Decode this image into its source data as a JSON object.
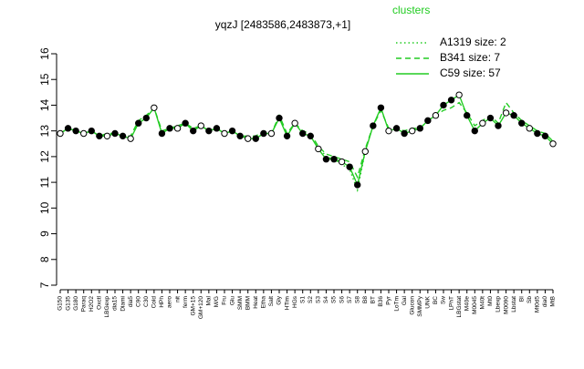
{
  "chart_data": {
    "type": "line",
    "title": "yqzJ [2483586,2483873,+1]",
    "legend_title": "clusters",
    "legend_position": "top-right",
    "categories": [
      "G150",
      "G135",
      "G180",
      "Paraq",
      "H2O2",
      "Oxctl",
      "LBGexp",
      "dia15",
      "Diami",
      "dia5",
      "C90",
      "C30",
      "Cold",
      "HPh",
      "aero",
      "nit",
      "ferm",
      "GM+15",
      "GM+120",
      "Mal",
      "M/G",
      "Fru",
      "Glu",
      "SMM",
      "BMM",
      "Heat",
      "Etha",
      "Salt",
      "Gly",
      "HTim",
      "HGs",
      "S1",
      "S2",
      "S3",
      "S4",
      "S5",
      "S6",
      "S7",
      "S8",
      "B8",
      "BT",
      "B36",
      "Pyr",
      "LoTm",
      "Gal",
      "Glucon",
      "SMMPy",
      "UNK",
      "BC",
      "Sw",
      "LPhT",
      "LBGstat",
      "M40e",
      "M0045",
      "M40t",
      "Mt0",
      "Lbexp",
      "M0090",
      "Lbstat",
      "BI",
      "Sb",
      "Mt0d5",
      "dia0",
      "MtB"
    ],
    "series": [
      {
        "name": "A1319 size: 2",
        "color": "#22cc22",
        "style": "dotted",
        "values": [
          null,
          null,
          null,
          null,
          null,
          null,
          null,
          null,
          null,
          null,
          null,
          null,
          null,
          null,
          null,
          null,
          null,
          null,
          null,
          null,
          null,
          null,
          null,
          null,
          null,
          null,
          null,
          null,
          null,
          null,
          null,
          null,
          null,
          12.4,
          12.0,
          11.9,
          11.7,
          11.5,
          10.7,
          12.2,
          null,
          null,
          null,
          null,
          null,
          null,
          null,
          null,
          null,
          null,
          null,
          null,
          null,
          null,
          null,
          null,
          null,
          null,
          null,
          null,
          null,
          null,
          null,
          null
        ]
      },
      {
        "name": "B341 size: 7",
        "color": "#22cc22",
        "style": "dashed",
        "values": [
          12.9,
          13.1,
          13.0,
          12.9,
          13.0,
          12.8,
          12.9,
          12.9,
          12.8,
          12.8,
          13.4,
          13.6,
          13.9,
          13.0,
          13.1,
          13.2,
          13.3,
          13.1,
          13.2,
          13.0,
          13.1,
          12.9,
          13.0,
          12.8,
          12.8,
          12.8,
          13.0,
          12.9,
          13.6,
          12.9,
          13.3,
          13.0,
          12.9,
          12.4,
          12.1,
          12.0,
          11.9,
          11.8,
          11.2,
          12.3,
          13.2,
          13.8,
          13.1,
          13.1,
          13.0,
          13.1,
          13.1,
          13.4,
          13.6,
          13.8,
          13.9,
          14.1,
          13.7,
          13.2,
          13.4,
          13.6,
          13.3,
          14.1,
          13.7,
          13.4,
          13.2,
          13.0,
          12.9,
          12.6
        ]
      },
      {
        "name": "C59 size: 57",
        "color": "#22cc22",
        "style": "solid",
        "values": [
          12.9,
          13.1,
          13.0,
          12.9,
          13.0,
          12.8,
          12.8,
          12.9,
          12.8,
          12.7,
          13.3,
          13.5,
          13.9,
          12.9,
          13.1,
          13.1,
          13.3,
          13.0,
          13.2,
          13.0,
          13.1,
          12.9,
          13.0,
          12.8,
          12.7,
          12.7,
          12.9,
          12.9,
          13.5,
          12.8,
          13.3,
          12.9,
          12.8,
          12.3,
          11.9,
          11.9,
          11.8,
          11.6,
          10.9,
          12.2,
          13.2,
          13.9,
          13.0,
          13.1,
          12.9,
          13.0,
          13.1,
          13.4,
          13.6,
          14.0,
          14.2,
          14.4,
          13.6,
          13.0,
          13.3,
          13.5,
          13.2,
          13.7,
          13.6,
          13.3,
          13.1,
          12.9,
          12.8,
          12.5
        ]
      }
    ],
    "ylim": [
      7,
      16
    ],
    "yticks": [
      7,
      8,
      9,
      10,
      11,
      12,
      13,
      14,
      15,
      16
    ]
  }
}
